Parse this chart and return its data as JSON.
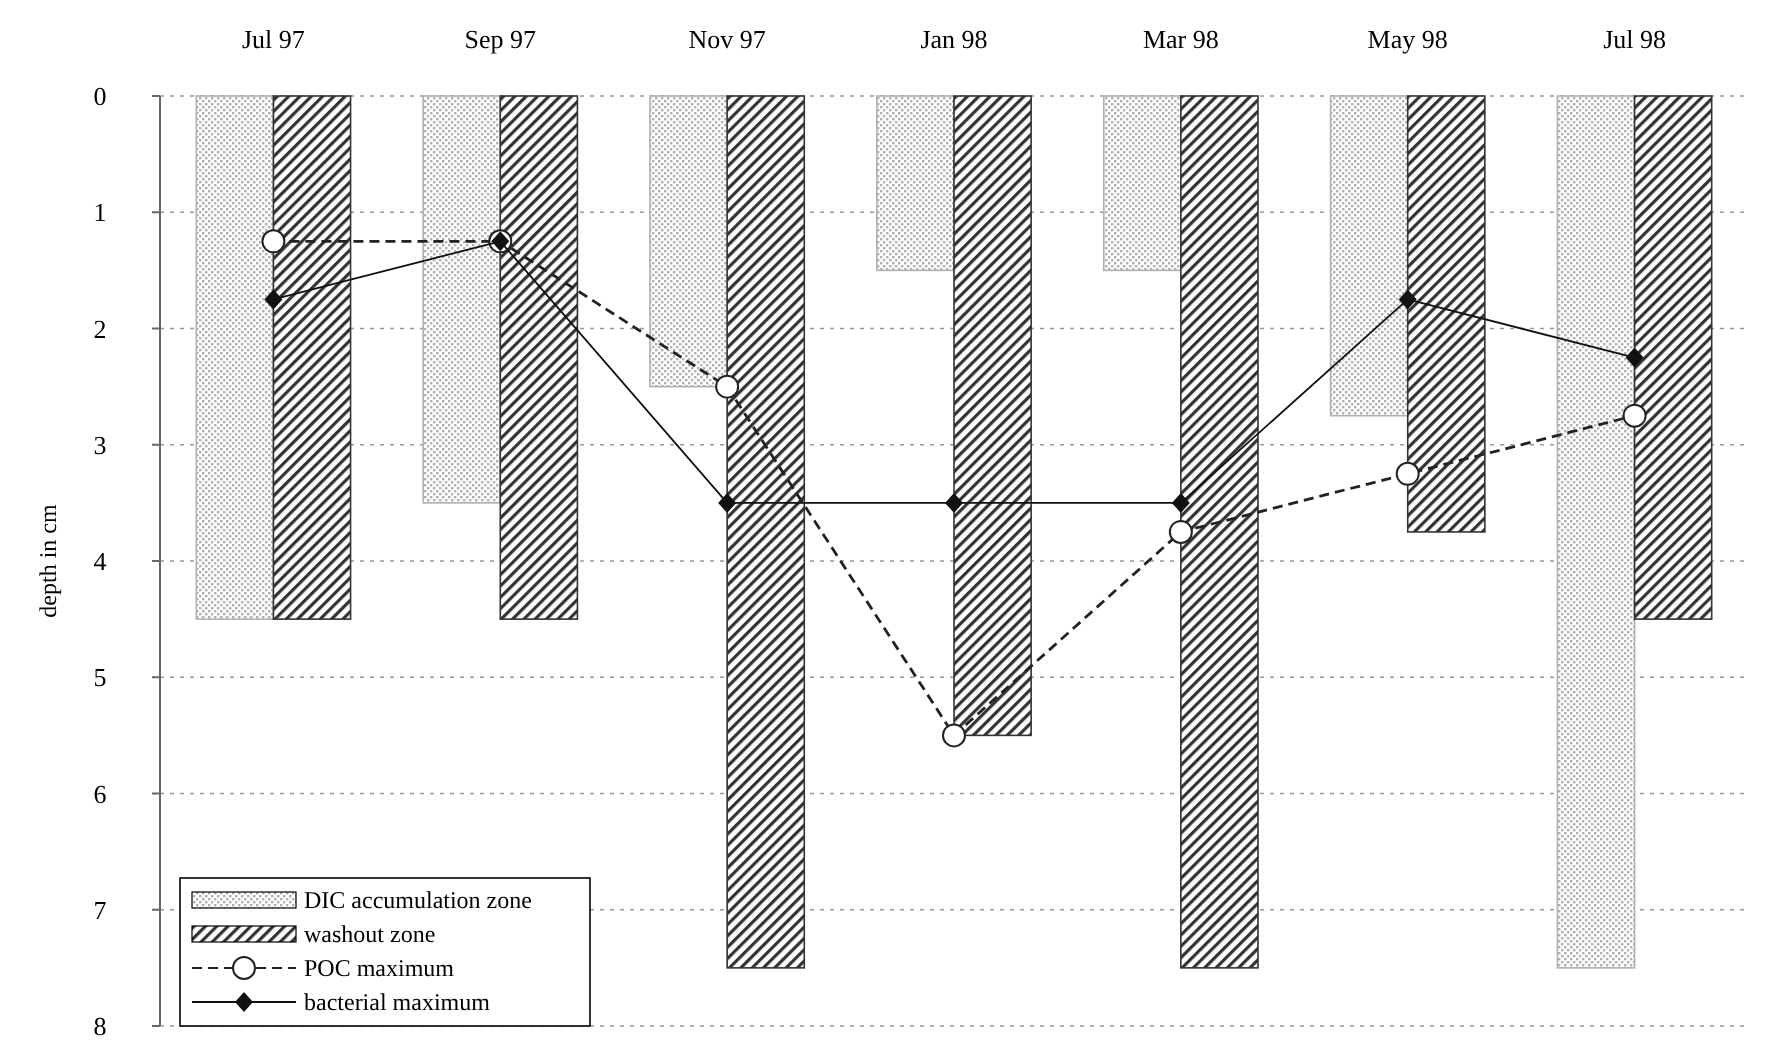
{
  "chart_data": {
    "type": "bar",
    "ylabel": "depth in cm",
    "categories": [
      "Jul 97",
      "Sep 97",
      "Nov 97",
      "Jan 98",
      "Mar 98",
      "May 98",
      "Jul 98"
    ],
    "ylim": [
      8,
      0
    ],
    "yticks": [
      0,
      1,
      2,
      3,
      4,
      5,
      6,
      7,
      8
    ],
    "grid": "y",
    "legend": "bottom left",
    "series": [
      {
        "name": "DIC accumulation zone",
        "color": "#b0b0b0",
        "values": [
          4.5,
          3.5,
          2.5,
          1.5,
          1.5,
          2.75,
          7.5
        ]
      },
      {
        "name": "washout zone",
        "color": "#333333",
        "values": [
          4.5,
          4.5,
          7.5,
          5.5,
          7.5,
          3.75,
          4.5
        ]
      },
      {
        "name": "POC maximum",
        "type": "line",
        "color": "#222222",
        "marker": "circle",
        "line_style": "dashed",
        "values": [
          1.25,
          1.25,
          2.5,
          5.5,
          3.75,
          3.25,
          2.75
        ]
      },
      {
        "name": "bacterial maximum",
        "type": "line",
        "color": "#111111",
        "marker": "diamond",
        "line_style": "solid",
        "values": [
          1.75,
          1.25,
          3.5,
          3.5,
          3.5,
          1.75,
          2.25
        ]
      }
    ]
  }
}
